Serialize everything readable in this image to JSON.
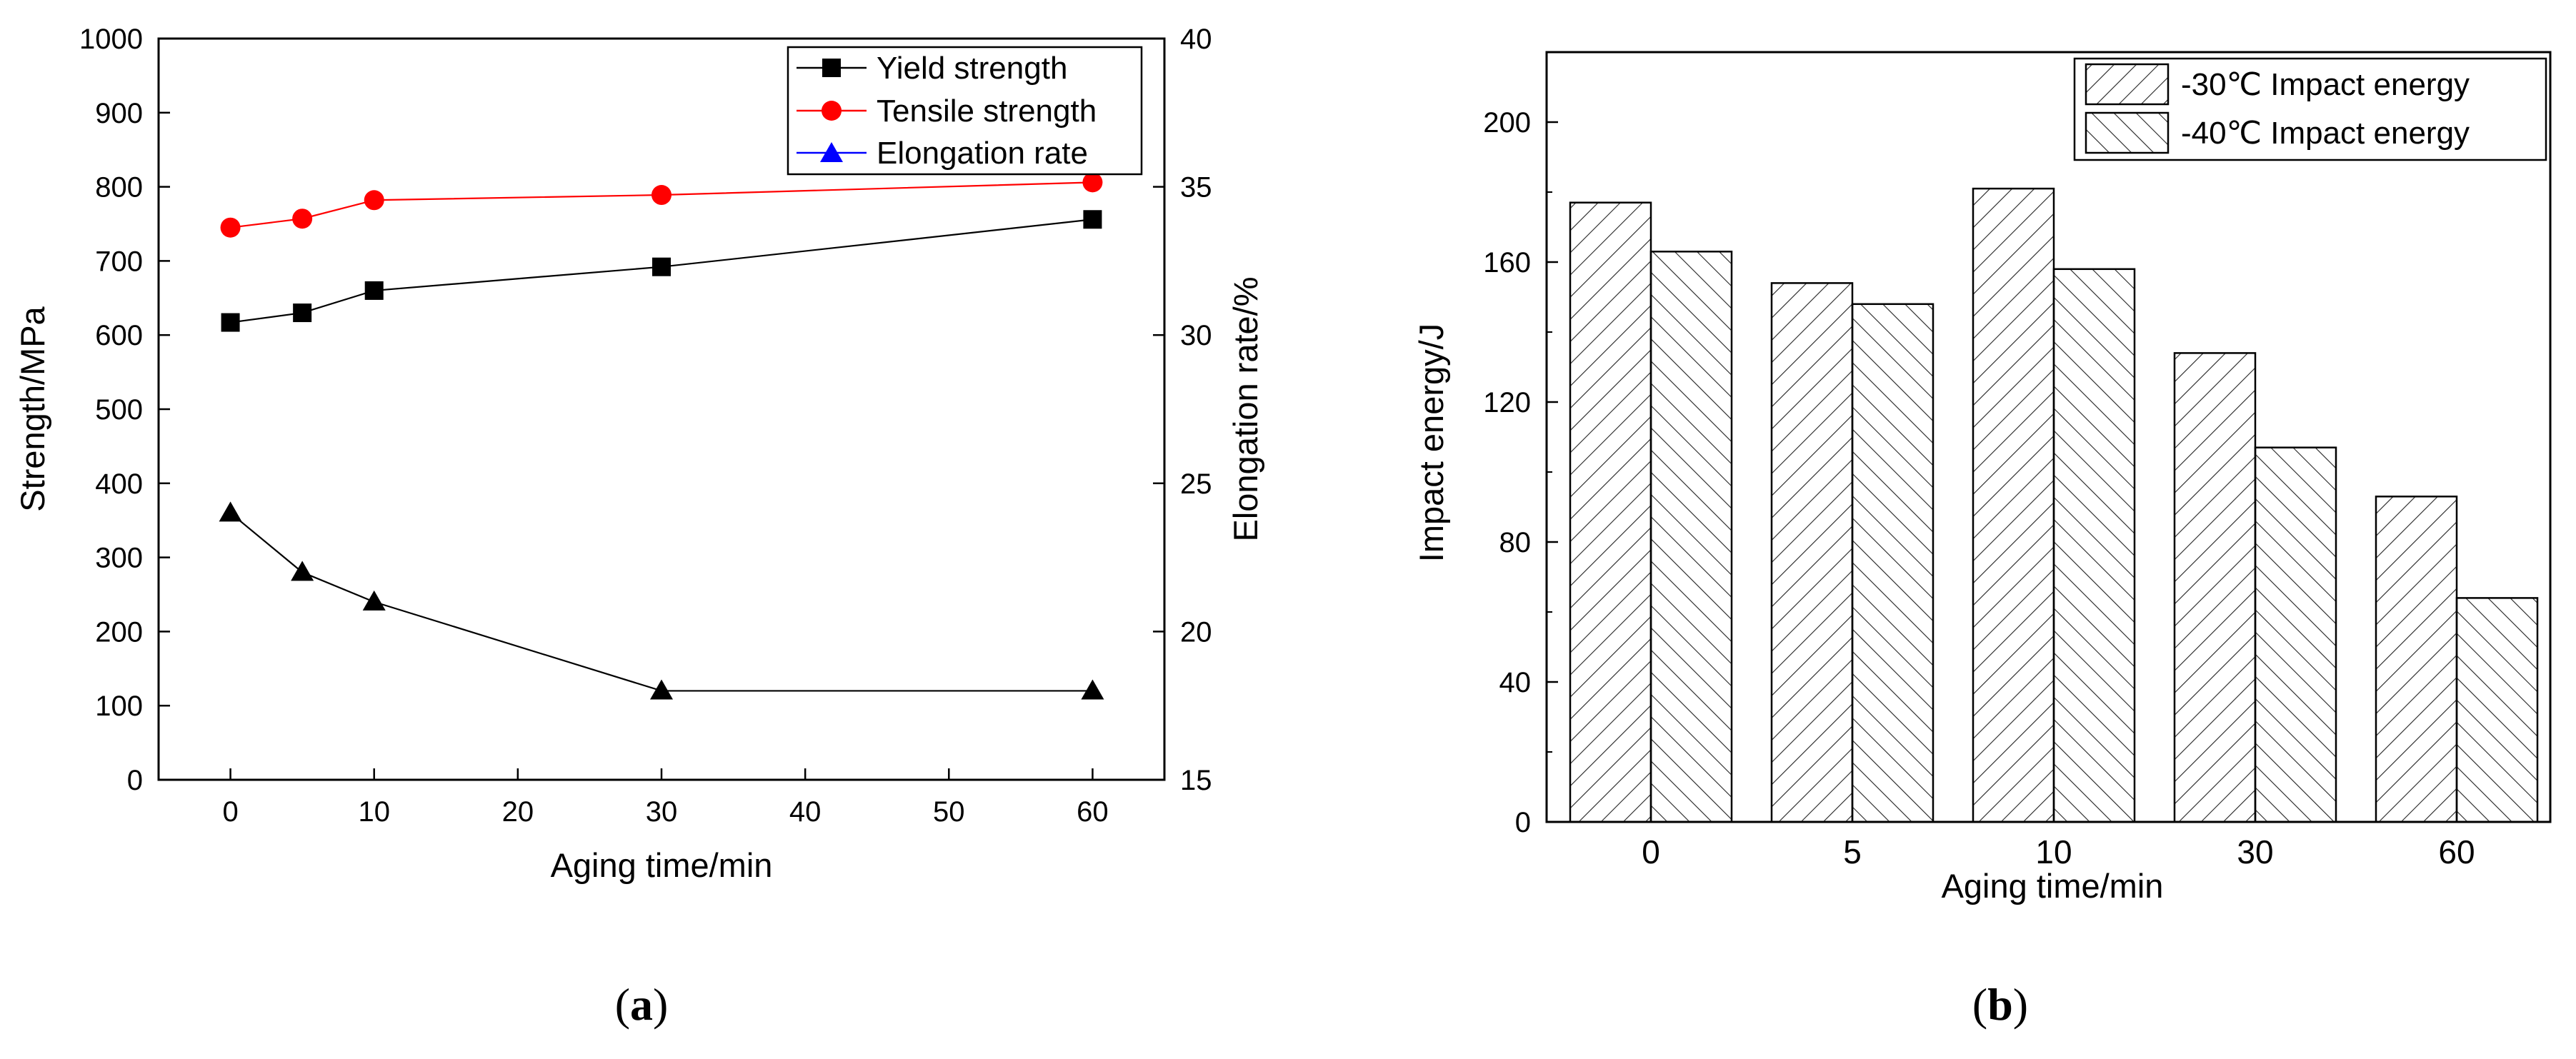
{
  "chart_data": [
    {
      "type": "line",
      "panel_label": "a",
      "xlabel": "Aging time/min",
      "ylabel": "Strength/MPa",
      "ylabel_right": "Elongation rate/%",
      "xlim": [
        -5,
        65
      ],
      "ylim": [
        0,
        1000
      ],
      "ylim_right": [
        15,
        40
      ],
      "x_ticks": [
        "0",
        "10",
        "20",
        "30",
        "40",
        "50",
        "60"
      ],
      "y_ticks": [
        "0",
        "100",
        "200",
        "300",
        "400",
        "500",
        "600",
        "700",
        "800",
        "900",
        "1000"
      ],
      "y_ticks_right": [
        "15",
        "20",
        "25",
        "30",
        "35",
        "40"
      ],
      "legend_position": "top-right",
      "series": [
        {
          "name": "Yield strength",
          "axis": "left",
          "marker": "square",
          "color": "#000000",
          "x": [
            0,
            5,
            10,
            30,
            60
          ],
          "values": [
            617,
            630,
            660,
            692,
            756
          ]
        },
        {
          "name": "Tensile strength",
          "axis": "left",
          "marker": "circle",
          "color": "#ff0000",
          "x": [
            0,
            5,
            10,
            30,
            60
          ],
          "values": [
            745,
            757,
            782,
            789,
            806
          ]
        },
        {
          "name": "Elongation rate",
          "axis": "right",
          "marker": "triangle",
          "color": "#0000ff",
          "marker_color": "#000000",
          "x": [
            0,
            5,
            10,
            30,
            60
          ],
          "values": [
            24,
            22,
            21,
            18,
            18
          ]
        }
      ]
    },
    {
      "type": "bar",
      "panel_label": "b",
      "xlabel": "Aging time/min",
      "ylabel": "Impact energy/J",
      "categories": [
        "0",
        "5",
        "10",
        "30",
        "60"
      ],
      "ylim": [
        0,
        220
      ],
      "y_ticks": [
        "0",
        "40",
        "80",
        "120",
        "160",
        "200"
      ],
      "legend_position": "top-right",
      "series": [
        {
          "name": "-30℃ Impact energy",
          "hatch": "forward-diagonal",
          "values": [
            177,
            154,
            181,
            134,
            93
          ]
        },
        {
          "name": "-40℃ Impact energy",
          "hatch": "back-diagonal",
          "values": [
            163,
            148,
            158,
            107,
            64
          ]
        }
      ]
    }
  ]
}
